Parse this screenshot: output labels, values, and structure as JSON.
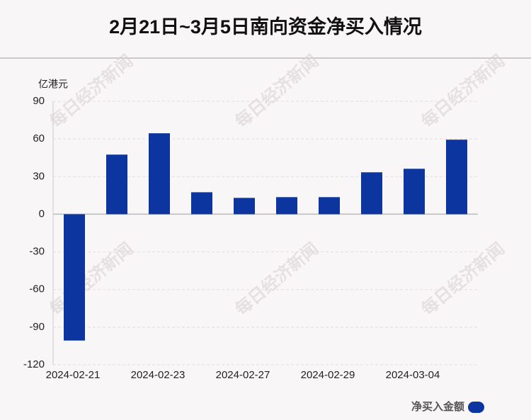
{
  "chart_data": {
    "type": "bar",
    "title": "2月21日~3月5日南向资金净买入情况",
    "y_unit": "亿港元",
    "watermark": "每日经济新闻",
    "categories": [
      "2024-02-21",
      null,
      "2024-02-23",
      null,
      "2024-02-27",
      null,
      "2024-02-29",
      null,
      "2024-03-04",
      null
    ],
    "series": [
      {
        "name": "净买入金额",
        "color": "#0d35a0",
        "values": [
          -100.7,
          47.5,
          64.5,
          17.5,
          13,
          13.6,
          13.6,
          33.4,
          36.2,
          59.4
        ]
      }
    ],
    "ylim": [
      -120,
      90
    ],
    "yticks": [
      -120,
      -90,
      -60,
      -30,
      0,
      30,
      60,
      90
    ],
    "grid": true,
    "legend": "bottom-right"
  }
}
